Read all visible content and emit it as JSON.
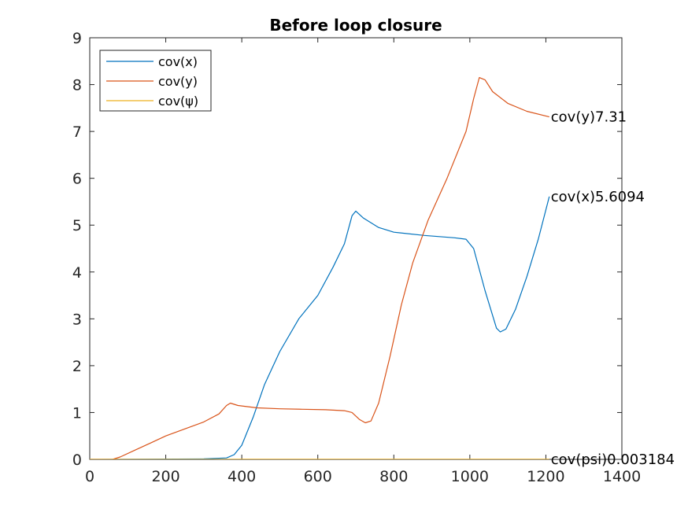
{
  "chart_data": {
    "type": "line",
    "title": "Before loop closure",
    "xlabel": "",
    "ylabel": "",
    "xlim": [
      0,
      1400
    ],
    "ylim": [
      0,
      9
    ],
    "xticks": [
      0,
      200,
      400,
      600,
      800,
      1000,
      1200,
      1400
    ],
    "yticks": [
      0,
      1,
      2,
      3,
      4,
      5,
      6,
      7,
      8,
      9
    ],
    "grid": false,
    "legend": {
      "placement": "top-left"
    },
    "series": [
      {
        "name": "cov(x)",
        "color": "#0072BD",
        "points": [
          [
            0,
            0
          ],
          [
            300,
            0.01
          ],
          [
            360,
            0.03
          ],
          [
            380,
            0.1
          ],
          [
            400,
            0.3
          ],
          [
            430,
            0.9
          ],
          [
            460,
            1.6
          ],
          [
            500,
            2.3
          ],
          [
            550,
            3.0
          ],
          [
            600,
            3.5
          ],
          [
            640,
            4.1
          ],
          [
            670,
            4.6
          ],
          [
            690,
            5.2
          ],
          [
            700,
            5.3
          ],
          [
            720,
            5.15
          ],
          [
            760,
            4.95
          ],
          [
            800,
            4.85
          ],
          [
            880,
            4.78
          ],
          [
            960,
            4.73
          ],
          [
            990,
            4.7
          ],
          [
            1010,
            4.5
          ],
          [
            1040,
            3.6
          ],
          [
            1070,
            2.8
          ],
          [
            1080,
            2.72
          ],
          [
            1095,
            2.78
          ],
          [
            1120,
            3.2
          ],
          [
            1150,
            3.9
          ],
          [
            1180,
            4.7
          ],
          [
            1209,
            5.6094
          ]
        ]
      },
      {
        "name": "cov(y)",
        "color": "#D95319",
        "points": [
          [
            0,
            0
          ],
          [
            60,
            0
          ],
          [
            80,
            0.05
          ],
          [
            120,
            0.2
          ],
          [
            160,
            0.35
          ],
          [
            200,
            0.5
          ],
          [
            250,
            0.65
          ],
          [
            300,
            0.8
          ],
          [
            340,
            0.97
          ],
          [
            360,
            1.15
          ],
          [
            370,
            1.2
          ],
          [
            390,
            1.15
          ],
          [
            440,
            1.1
          ],
          [
            500,
            1.08
          ],
          [
            560,
            1.07
          ],
          [
            620,
            1.06
          ],
          [
            670,
            1.04
          ],
          [
            690,
            1.0
          ],
          [
            710,
            0.85
          ],
          [
            725,
            0.78
          ],
          [
            740,
            0.82
          ],
          [
            760,
            1.2
          ],
          [
            790,
            2.2
          ],
          [
            820,
            3.3
          ],
          [
            850,
            4.2
          ],
          [
            890,
            5.1
          ],
          [
            940,
            6.0
          ],
          [
            990,
            7.0
          ],
          [
            1010,
            7.7
          ],
          [
            1025,
            8.15
          ],
          [
            1040,
            8.1
          ],
          [
            1060,
            7.85
          ],
          [
            1100,
            7.6
          ],
          [
            1150,
            7.43
          ],
          [
            1209,
            7.31
          ]
        ]
      },
      {
        "name": "cov(ψ)",
        "color": "#EDB120",
        "points": [
          [
            0,
            0
          ],
          [
            400,
            0.001
          ],
          [
            800,
            0.002
          ],
          [
            1209,
            0.003184
          ]
        ]
      }
    ],
    "annotations": [
      {
        "text": "cov(y)7.31",
        "x": 1209,
        "y": 7.31
      },
      {
        "text": "cov(x)5.6094",
        "x": 1209,
        "y": 5.6094
      },
      {
        "text": "cov(psi)0.003184",
        "x": 1209,
        "y": 0.003184
      }
    ]
  }
}
